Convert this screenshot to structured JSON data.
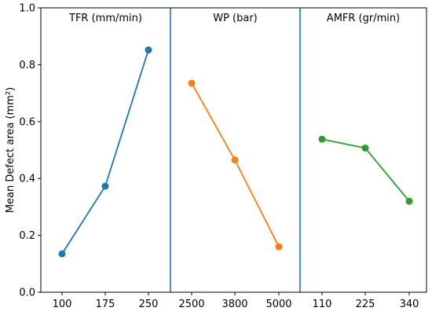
{
  "chart_data": {
    "type": "line",
    "ylabel": "Mean Defect area (mm²)",
    "ylim": [
      0,
      1.0
    ],
    "yticks": [
      0.0,
      0.2,
      0.4,
      0.6,
      0.8,
      1.0
    ],
    "ytick_labels": [
      "0.0",
      "0.2",
      "0.4",
      "0.6",
      "0.8",
      "1.0"
    ],
    "grid": false,
    "panels": [
      {
        "name": "TFR (mm/min)",
        "color": "#1f77b4",
        "categories": [
          "100",
          "175",
          "250"
        ],
        "values": [
          0.135,
          0.373,
          0.852
        ]
      },
      {
        "name": "WP (bar)",
        "color": "#ff7f0e",
        "categories": [
          "2500",
          "3800",
          "5000"
        ],
        "values": [
          0.735,
          0.465,
          0.16
        ]
      },
      {
        "name": "AMFR (gr/min)",
        "color": "#2ca02c",
        "categories": [
          "110",
          "225",
          "340"
        ],
        "values": [
          0.538,
          0.507,
          0.32
        ]
      }
    ],
    "divider_color": "#1f77b4"
  }
}
